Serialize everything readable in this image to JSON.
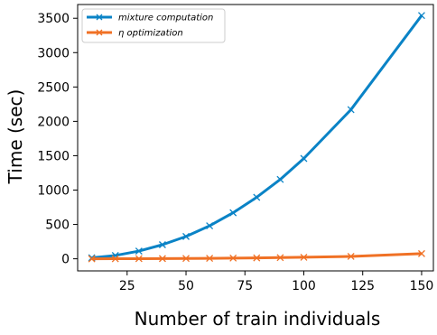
{
  "chart_data": {
    "type": "line",
    "title": "",
    "xlabel": "Number of train individuals",
    "ylabel": "Time (sec)",
    "xlim": [
      4,
      155
    ],
    "ylim": [
      -176,
      3700
    ],
    "xticks": [
      25,
      50,
      75,
      100,
      125,
      150
    ],
    "yticks": [
      0,
      500,
      1000,
      1500,
      2000,
      2500,
      3000,
      3500
    ],
    "grid": false,
    "legend_position": "top-left",
    "x": [
      10,
      20,
      30,
      40,
      50,
      60,
      70,
      80,
      90,
      100,
      120,
      150
    ],
    "series": [
      {
        "name": "mixture computation",
        "color": "#0a83c6",
        "marker": "x",
        "values": [
          15,
          48,
          112,
          205,
          325,
          480,
          670,
          895,
          1155,
          1460,
          2170,
          3540
        ]
      },
      {
        "name": "η optimization",
        "color": "#f07125",
        "marker": "x",
        "values": [
          0,
          1,
          2,
          3,
          5,
          7,
          10,
          13,
          17,
          22,
          35,
          75
        ]
      }
    ]
  }
}
